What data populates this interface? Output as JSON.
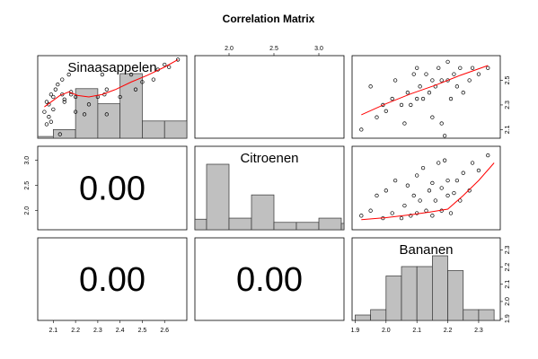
{
  "title": "Correlation Matrix",
  "colors": {
    "hist_fill": "#c0c0c0",
    "hist_stroke": "#333333",
    "smooth_line": "#ff0000",
    "point_stroke": "#000000"
  },
  "chart_data": {
    "type": "scatter-matrix",
    "title": "Correlation Matrix",
    "variables": [
      "Sinaasappelen",
      "Citroenen",
      "Bananen"
    ],
    "ranges": {
      "Sinaasappelen": [
        2.03,
        2.7
      ],
      "Citroenen": [
        1.62,
        3.28
      ],
      "Bananen": [
        1.89,
        2.37
      ]
    },
    "ticks": {
      "Sinaasappelen": [
        2.1,
        2.2,
        2.3,
        2.4,
        2.5,
        2.6
      ],
      "Citroenen": [
        2.0,
        2.5,
        3.0
      ],
      "Bananen": [
        1.9,
        2.0,
        2.1,
        2.2,
        2.3
      ]
    },
    "tick_labels": {
      "Sinaasappelen": [
        "2.1",
        "2.2",
        "2.3",
        "2.4",
        "2.5",
        "2.6"
      ],
      "Citroenen_top": [
        "2.0",
        "2.5",
        "3.0"
      ],
      "Citroenen_left": [
        "2.0",
        "2.5",
        "3.0"
      ],
      "Bananen_bottom": [
        "1.9",
        "2.0",
        "2.1",
        "2.2",
        "2.3"
      ],
      "Bananen_right": [
        "1.9",
        "2.0",
        "2.1",
        "2.2",
        "2.3"
      ],
      "Bananen_right_mid": [
        "2.1",
        "2.3",
        "2.5"
      ]
    },
    "correlations": [
      {
        "row": "Citroenen",
        "col": "Sinaasappelen",
        "label": "0.00"
      },
      {
        "row": "Bananen",
        "col": "Sinaasappelen",
        "label": "0.00"
      },
      {
        "row": "Bananen",
        "col": "Citroenen",
        "label": "0.00"
      }
    ],
    "histograms": {
      "Sinaasappelen": {
        "breaks": [
          2.0,
          2.1,
          2.2,
          2.3,
          2.4,
          2.5,
          2.6,
          2.7
        ],
        "density": [
          0.08,
          0.4,
          2.3,
          1.6,
          3.0,
          0.8,
          0.8
        ]
      },
      "Citroenen": {
        "breaks": [
          1.5,
          1.75,
          2.0,
          2.25,
          2.5,
          2.75,
          3.0,
          3.25,
          3.5
        ],
        "density": [
          1.0,
          6.2,
          1.1,
          3.3,
          0.7,
          0.7,
          1.1,
          0.6
        ]
      },
      "Bananen": {
        "breaks": [
          1.9,
          1.95,
          2.0,
          2.05,
          2.1,
          2.15,
          2.2,
          2.25,
          2.3,
          2.35
        ],
        "density": [
          0.4,
          0.8,
          3.3,
          4.0,
          4.0,
          4.8,
          3.7,
          0.8,
          0.8
        ]
      }
    },
    "scatter": {
      "Sinaasappelen_vs_Citroenen": {
        "x": [
          2.06,
          2.07,
          2.07,
          2.08,
          2.08,
          2.09,
          2.09,
          2.1,
          2.1,
          2.11,
          2.12,
          2.13,
          2.14,
          2.14,
          2.15,
          2.15,
          2.17,
          2.18,
          2.18,
          2.2,
          2.2,
          2.24,
          2.26,
          2.3,
          2.32,
          2.33,
          2.34,
          2.34,
          2.4,
          2.45,
          2.47,
          2.5,
          2.55,
          2.57,
          2.6,
          2.62,
          2.66
        ],
        "y": [
          2.15,
          2.35,
          1.9,
          2.05,
          2.3,
          2.5,
          1.95,
          2.2,
          2.45,
          2.6,
          2.7,
          1.7,
          2.8,
          2.5,
          2.35,
          2.4,
          2.9,
          2.5,
          2.55,
          2.15,
          2.45,
          2.1,
          2.3,
          2.45,
          2.9,
          2.5,
          2.1,
          2.6,
          2.45,
          2.9,
          2.6,
          2.75,
          2.8,
          3.0,
          3.1,
          3.05,
          3.2
        ]
      },
      "Bananen_vs_Sinaasappelen": {
        "x": [
          1.92,
          1.95,
          1.97,
          1.99,
          2.0,
          2.02,
          2.03,
          2.05,
          2.06,
          2.07,
          2.08,
          2.09,
          2.1,
          2.1,
          2.11,
          2.12,
          2.13,
          2.14,
          2.15,
          2.15,
          2.16,
          2.17,
          2.18,
          2.18,
          2.19,
          2.2,
          2.2,
          2.21,
          2.22,
          2.23,
          2.24,
          2.25,
          2.27,
          2.28,
          2.3,
          2.33
        ],
        "y": [
          2.1,
          2.45,
          2.2,
          2.3,
          2.25,
          2.35,
          2.5,
          2.3,
          2.15,
          2.4,
          2.3,
          2.55,
          2.35,
          2.6,
          2.45,
          2.35,
          2.55,
          2.4,
          2.5,
          2.2,
          2.45,
          2.6,
          2.15,
          2.5,
          2.05,
          2.5,
          2.65,
          2.35,
          2.55,
          2.45,
          2.6,
          2.4,
          2.5,
          2.6,
          2.55,
          2.6
        ]
      },
      "Bananen_vs_Citroenen": {
        "x": [
          1.92,
          1.95,
          1.97,
          1.99,
          2.0,
          2.02,
          2.03,
          2.05,
          2.06,
          2.07,
          2.08,
          2.09,
          2.1,
          2.1,
          2.11,
          2.12,
          2.13,
          2.14,
          2.15,
          2.15,
          2.16,
          2.17,
          2.18,
          2.18,
          2.19,
          2.2,
          2.2,
          2.21,
          2.22,
          2.23,
          2.24,
          2.25,
          2.27,
          2.28,
          2.3,
          2.33
        ],
        "y": [
          1.9,
          2.0,
          2.3,
          1.85,
          2.4,
          1.95,
          2.6,
          1.85,
          2.1,
          2.5,
          1.9,
          2.3,
          2.7,
          1.95,
          2.2,
          2.85,
          2.0,
          2.4,
          1.9,
          2.55,
          2.2,
          2.95,
          2.0,
          2.45,
          3.0,
          2.3,
          2.6,
          1.95,
          2.35,
          2.6,
          2.2,
          2.75,
          2.4,
          2.95,
          2.8,
          3.1
        ]
      }
    },
    "smooth": {
      "Sinaasappelen_vs_Citroenen": {
        "x": [
          2.06,
          2.09,
          2.13,
          2.17,
          2.21,
          2.26,
          2.32,
          2.38,
          2.45,
          2.52,
          2.6,
          2.66
        ],
        "y": [
          2.25,
          2.35,
          2.48,
          2.55,
          2.48,
          2.45,
          2.5,
          2.6,
          2.75,
          2.88,
          3.05,
          3.2
        ]
      },
      "Bananen_vs_Sinaasappelen": {
        "x": [
          1.92,
          2.0,
          2.08,
          2.16,
          2.24,
          2.33
        ],
        "y": [
          2.22,
          2.31,
          2.39,
          2.46,
          2.54,
          2.62
        ]
      },
      "Bananen_vs_Citroenen": {
        "x": [
          1.92,
          2.0,
          2.08,
          2.14,
          2.2,
          2.25,
          2.3,
          2.35
        ],
        "y": [
          1.82,
          1.86,
          1.92,
          1.97,
          2.03,
          2.3,
          2.6,
          2.95
        ]
      }
    }
  }
}
